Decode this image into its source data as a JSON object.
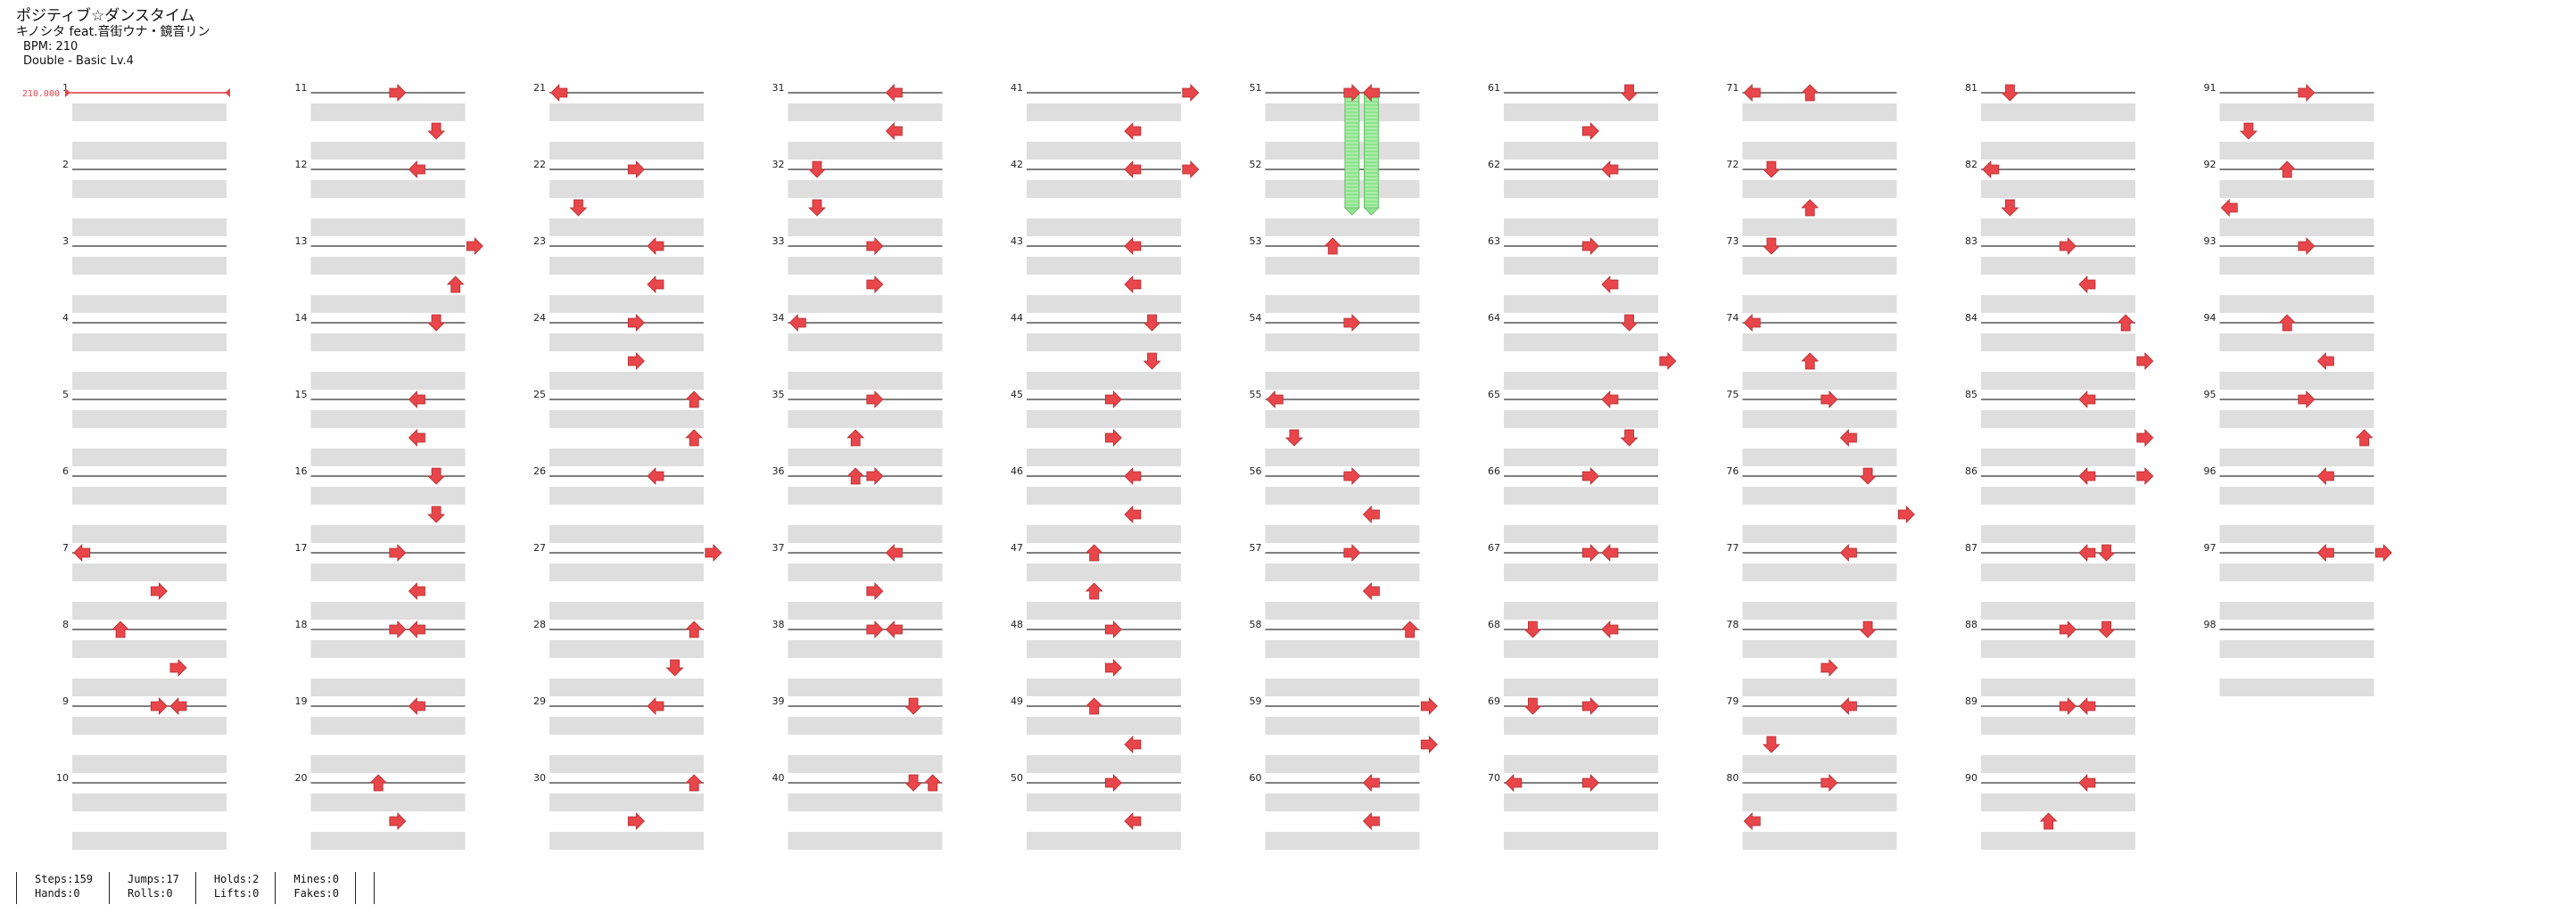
{
  "song": {
    "title": "ポジティブ☆ダンスタイム",
    "artist": "キノシタ feat.音街ウナ・鏡音リン",
    "bpm_text": "BPM: 210",
    "difficulty_text": "Double - Basic Lv.4"
  },
  "bpm_marker": "210.000",
  "colors": {
    "arrow": "#e8464a",
    "hold": "#8fe38f",
    "beat": "#dedede"
  },
  "measures": {
    "count": 98,
    "labels": [
      "1",
      "2",
      "3",
      "4",
      "5",
      "6",
      "7",
      "8",
      "9",
      "10",
      "11",
      "12",
      "13",
      "14",
      "15",
      "16",
      "17",
      "18",
      "19",
      "20",
      "21",
      "22",
      "23",
      "24",
      "25",
      "26",
      "27",
      "28",
      "29",
      "30",
      "31",
      "32",
      "33",
      "34",
      "35",
      "36",
      "37",
      "38",
      "39",
      "40",
      "41",
      "42",
      "43",
      "44",
      "45",
      "46",
      "47",
      "48",
      "49",
      "50",
      "51",
      "52",
      "53",
      "54",
      "55",
      "56",
      "57",
      "58",
      "59",
      "60",
      "61",
      "62",
      "63",
      "64",
      "65",
      "66",
      "67",
      "68",
      "69",
      "70",
      "71",
      "72",
      "73",
      "74",
      "75",
      "76",
      "77",
      "78",
      "79",
      "80",
      "81",
      "82",
      "83",
      "84",
      "85",
      "86",
      "87",
      "88",
      "89",
      "90",
      "91",
      "92",
      "93",
      "94",
      "95",
      "96",
      "97",
      "98"
    ]
  },
  "notes": [
    [
      7,
      0,
      0,
      "left"
    ],
    [
      7,
      2,
      4,
      "right"
    ],
    [
      8,
      0,
      2,
      "up"
    ],
    [
      8,
      2,
      5,
      "right"
    ],
    [
      9,
      0,
      4,
      "right"
    ],
    [
      9,
      0,
      5,
      "left"
    ],
    [
      11,
      0,
      4,
      "right"
    ],
    [
      11,
      2,
      6,
      "down"
    ],
    [
      12,
      0,
      5,
      "left"
    ],
    [
      13,
      0,
      8,
      "right"
    ],
    [
      13,
      2,
      7,
      "up"
    ],
    [
      14,
      0,
      6,
      "down"
    ],
    [
      15,
      0,
      5,
      "left"
    ],
    [
      15,
      2,
      5,
      "left"
    ],
    [
      16,
      0,
      6,
      "down"
    ],
    [
      16,
      2,
      6,
      "down"
    ],
    [
      17,
      0,
      4,
      "right"
    ],
    [
      17,
      2,
      5,
      "left"
    ],
    [
      18,
      0,
      4,
      "right"
    ],
    [
      18,
      0,
      5,
      "left"
    ],
    [
      19,
      0,
      5,
      "left"
    ],
    [
      20,
      0,
      3,
      "up"
    ],
    [
      20,
      2,
      4,
      "right"
    ],
    [
      21,
      0,
      0,
      "left"
    ],
    [
      22,
      0,
      4,
      "right"
    ],
    [
      22,
      2,
      1,
      "down"
    ],
    [
      23,
      0,
      5,
      "left"
    ],
    [
      23,
      2,
      5,
      "left"
    ],
    [
      24,
      0,
      4,
      "right"
    ],
    [
      24,
      2,
      4,
      "right"
    ],
    [
      25,
      0,
      7,
      "up"
    ],
    [
      25,
      2,
      7,
      "up"
    ],
    [
      26,
      0,
      5,
      "left"
    ],
    [
      27,
      0,
      8,
      "right"
    ],
    [
      28,
      0,
      7,
      "up"
    ],
    [
      28,
      2,
      6,
      "down"
    ],
    [
      29,
      0,
      5,
      "left"
    ],
    [
      30,
      0,
      7,
      "up"
    ],
    [
      30,
      2,
      4,
      "right"
    ],
    [
      31,
      0,
      5,
      "left"
    ],
    [
      31,
      2,
      5,
      "left"
    ],
    [
      32,
      0,
      1,
      "down"
    ],
    [
      32,
      2,
      1,
      "down"
    ],
    [
      33,
      0,
      4,
      "right"
    ],
    [
      33,
      2,
      4,
      "right"
    ],
    [
      34,
      0,
      0,
      "left"
    ],
    [
      35,
      0,
      4,
      "right"
    ],
    [
      35,
      2,
      3,
      "up"
    ],
    [
      36,
      0,
      3,
      "up"
    ],
    [
      36,
      0,
      4,
      "right"
    ],
    [
      37,
      0,
      5,
      "left"
    ],
    [
      37,
      2,
      4,
      "right"
    ],
    [
      38,
      0,
      4,
      "right"
    ],
    [
      38,
      0,
      5,
      "left"
    ],
    [
      39,
      0,
      6,
      "down"
    ],
    [
      40,
      0,
      6,
      "down"
    ],
    [
      40,
      0,
      7,
      "up"
    ],
    [
      41,
      0,
      8,
      "right"
    ],
    [
      41,
      2,
      5,
      "left"
    ],
    [
      42,
      0,
      5,
      "left"
    ],
    [
      42,
      0,
      8,
      "right"
    ],
    [
      43,
      0,
      5,
      "left"
    ],
    [
      43,
      2,
      5,
      "left"
    ],
    [
      44,
      0,
      6,
      "down"
    ],
    [
      44,
      2,
      6,
      "down"
    ],
    [
      45,
      0,
      4,
      "right"
    ],
    [
      45,
      2,
      4,
      "right"
    ],
    [
      46,
      0,
      5,
      "left"
    ],
    [
      46,
      2,
      5,
      "left"
    ],
    [
      47,
      0,
      3,
      "up"
    ],
    [
      47,
      2,
      3,
      "up"
    ],
    [
      48,
      0,
      4,
      "right"
    ],
    [
      48,
      2,
      4,
      "right"
    ],
    [
      49,
      0,
      3,
      "up"
    ],
    [
      49,
      2,
      5,
      "left"
    ],
    [
      50,
      0,
      4,
      "right"
    ],
    [
      50,
      2,
      5,
      "left"
    ],
    [
      53,
      0,
      3,
      "up"
    ],
    [
      54,
      0,
      4,
      "right"
    ],
    [
      55,
      0,
      0,
      "left"
    ],
    [
      55,
      2,
      1,
      "down"
    ],
    [
      56,
      0,
      4,
      "right"
    ],
    [
      56,
      2,
      5,
      "left"
    ],
    [
      57,
      0,
      4,
      "right"
    ],
    [
      57,
      2,
      5,
      "left"
    ],
    [
      58,
      0,
      7,
      "up"
    ],
    [
      59,
      0,
      8,
      "right"
    ],
    [
      59,
      2,
      8,
      "right"
    ],
    [
      60,
      0,
      5,
      "left"
    ],
    [
      60,
      2,
      5,
      "left"
    ],
    [
      61,
      0,
      6,
      "down"
    ],
    [
      61,
      2,
      4,
      "right"
    ],
    [
      62,
      0,
      5,
      "left"
    ],
    [
      63,
      0,
      4,
      "right"
    ],
    [
      63,
      2,
      5,
      "left"
    ],
    [
      64,
      0,
      6,
      "down"
    ],
    [
      64,
      2,
      8,
      "right"
    ],
    [
      65,
      0,
      5,
      "left"
    ],
    [
      65,
      2,
      6,
      "down"
    ],
    [
      66,
      0,
      4,
      "right"
    ],
    [
      67,
      0,
      4,
      "right"
    ],
    [
      67,
      0,
      5,
      "left"
    ],
    [
      68,
      0,
      1,
      "down"
    ],
    [
      68,
      0,
      5,
      "left"
    ],
    [
      69,
      0,
      1,
      "down"
    ],
    [
      69,
      0,
      4,
      "right"
    ],
    [
      70,
      0,
      0,
      "left"
    ],
    [
      70,
      0,
      4,
      "right"
    ],
    [
      71,
      0,
      0,
      "left"
    ],
    [
      71,
      0,
      3,
      "up"
    ],
    [
      72,
      0,
      1,
      "down"
    ],
    [
      72,
      2,
      3,
      "up"
    ],
    [
      73,
      0,
      1,
      "down"
    ],
    [
      74,
      0,
      0,
      "left"
    ],
    [
      74,
      2,
      3,
      "up"
    ],
    [
      75,
      0,
      4,
      "right"
    ],
    [
      75,
      2,
      5,
      "left"
    ],
    [
      76,
      0,
      6,
      "down"
    ],
    [
      76,
      2,
      8,
      "right"
    ],
    [
      77,
      0,
      5,
      "left"
    ],
    [
      78,
      0,
      6,
      "down"
    ],
    [
      78,
      2,
      4,
      "right"
    ],
    [
      79,
      0,
      5,
      "left"
    ],
    [
      79,
      2,
      1,
      "down"
    ],
    [
      80,
      0,
      4,
      "right"
    ],
    [
      80,
      2,
      0,
      "left"
    ],
    [
      81,
      0,
      1,
      "down"
    ],
    [
      82,
      0,
      0,
      "left"
    ],
    [
      82,
      2,
      1,
      "down"
    ],
    [
      83,
      0,
      4,
      "right"
    ],
    [
      83,
      2,
      5,
      "left"
    ],
    [
      84,
      0,
      7,
      "up"
    ],
    [
      84,
      2,
      8,
      "right"
    ],
    [
      85,
      0,
      5,
      "left"
    ],
    [
      85,
      2,
      8,
      "right"
    ],
    [
      86,
      0,
      5,
      "left"
    ],
    [
      86,
      0,
      8,
      "right"
    ],
    [
      87,
      0,
      5,
      "left"
    ],
    [
      87,
      0,
      6,
      "down"
    ],
    [
      88,
      0,
      4,
      "right"
    ],
    [
      88,
      0,
      6,
      "down"
    ],
    [
      89,
      0,
      4,
      "right"
    ],
    [
      89,
      0,
      5,
      "left"
    ],
    [
      90,
      0,
      5,
      "left"
    ],
    [
      90,
      2,
      3,
      "up"
    ],
    [
      91,
      0,
      4,
      "right"
    ],
    [
      91,
      2,
      1,
      "down"
    ],
    [
      92,
      0,
      3,
      "up"
    ],
    [
      92,
      2,
      0,
      "left"
    ],
    [
      93,
      0,
      4,
      "right"
    ],
    [
      94,
      0,
      3,
      "up"
    ],
    [
      94,
      2,
      5,
      "left"
    ],
    [
      95,
      0,
      4,
      "right"
    ],
    [
      95,
      2,
      7,
      "up"
    ],
    [
      96,
      0,
      5,
      "left"
    ],
    [
      97,
      0,
      5,
      "left"
    ],
    [
      97,
      0,
      8,
      "right"
    ]
  ],
  "holds": [
    [
      51,
      0,
      4,
      "right",
      52,
      2
    ],
    [
      51,
      0,
      5,
      "left",
      52,
      2
    ]
  ],
  "stats": [
    {
      "steps": "Steps:159",
      "hands": "Hands:0"
    },
    {
      "steps": "Jumps:17",
      "hands": "Rolls:0"
    },
    {
      "steps": "Holds:2",
      "hands": "Lifts:0"
    },
    {
      "steps": "Mines:0",
      "hands": "Fakes:0"
    }
  ]
}
